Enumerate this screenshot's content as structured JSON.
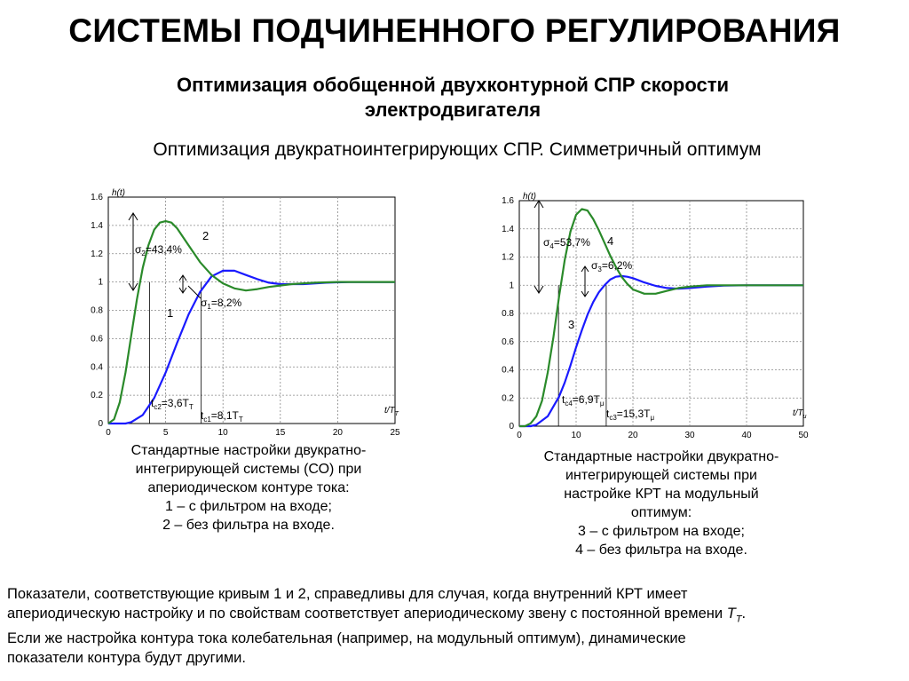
{
  "title": "СИСТЕМЫ ПОДЧИНЕННОГО РЕГУЛИРОВАНИЯ",
  "subtitle_line1": "Оптимизация обобщенной двухконтурной СПР скорости",
  "subtitle_line2": "электродвигателя",
  "subtitle2": "Оптимизация двукратноинтегрирующих СПР. Симметричный оптимум",
  "chart_data": [
    {
      "type": "line",
      "ylabel": "h(t)",
      "xlabel": "t/T",
      "xlabel_sub": "T",
      "xlim": [
        0,
        25
      ],
      "ylim": [
        0,
        1.6
      ],
      "x_ticks": [
        0,
        5,
        10,
        15,
        20,
        25
      ],
      "y_ticks": [
        0,
        0.2,
        0.4,
        0.6,
        0.8,
        1,
        1.2,
        1.4,
        1.6
      ],
      "grid": true,
      "series": [
        {
          "name": "1",
          "color": "#1a1aff",
          "x": [
            0,
            1.5,
            2,
            3,
            4,
            5,
            6,
            7,
            8,
            9,
            10,
            11,
            12,
            13,
            14,
            15,
            17,
            19,
            21,
            25
          ],
          "y": [
            0,
            0,
            0.01,
            0.06,
            0.18,
            0.36,
            0.57,
            0.77,
            0.93,
            1.04,
            1.08,
            1.08,
            1.05,
            1.02,
            0.995,
            0.985,
            0.985,
            0.995,
            1.0,
            1.0
          ]
        },
        {
          "name": "2",
          "color": "#2a8a2a",
          "x": [
            0,
            0.5,
            1,
            1.5,
            2,
            2.5,
            3,
            3.5,
            4,
            4.5,
            5,
            5.5,
            6,
            7,
            8,
            9,
            10,
            11,
            12,
            13,
            14,
            16,
            18,
            20,
            22,
            25
          ],
          "y": [
            0,
            0.03,
            0.15,
            0.36,
            0.62,
            0.88,
            1.1,
            1.26,
            1.37,
            1.42,
            1.43,
            1.42,
            1.38,
            1.26,
            1.14,
            1.05,
            0.99,
            0.955,
            0.94,
            0.95,
            0.965,
            0.985,
            0.995,
            1.0,
            1.0,
            1.0
          ]
        }
      ],
      "annotations": {
        "sigma2_base": "σ",
        "sigma2_sub": "2",
        "sigma2_val": "=43,4%",
        "curve2": "2",
        "sigma1_base": "σ",
        "sigma1_sub": "1",
        "sigma1_val": "=8,2%",
        "curve1": "1",
        "t2_base": "t",
        "t2_sub": "c2",
        "t2_val": "=3,6T",
        "t2_unit": "T",
        "t1_base": "t",
        "t1_sub": "c1",
        "t1_val": "=8,1T",
        "t1_unit": "T",
        "t2": 3.6,
        "t1": 8.1
      }
    },
    {
      "type": "line",
      "ylabel": "h(t)",
      "xlabel": "t/T",
      "xlabel_sub": "μ",
      "xlim": [
        0,
        50
      ],
      "ylim": [
        0,
        1.6
      ],
      "x_ticks": [
        0,
        10,
        20,
        30,
        40,
        50
      ],
      "y_ticks": [
        0,
        0.2,
        0.4,
        0.6,
        0.8,
        1,
        1.2,
        1.4,
        1.6
      ],
      "grid": true,
      "series": [
        {
          "name": "3",
          "color": "#1a1aff",
          "x": [
            0,
            2,
            3,
            5,
            7,
            8,
            9,
            10,
            11,
            12,
            13,
            14,
            15,
            16,
            17,
            18,
            19,
            20,
            21,
            22,
            24,
            26,
            28,
            30,
            33,
            36,
            40,
            50
          ],
          "y": [
            0,
            0,
            0.01,
            0.07,
            0.21,
            0.31,
            0.43,
            0.56,
            0.68,
            0.79,
            0.88,
            0.95,
            1.0,
            1.04,
            1.06,
            1.065,
            1.06,
            1.05,
            1.035,
            1.02,
            0.995,
            0.98,
            0.975,
            0.98,
            0.99,
            0.997,
            1.0,
            1.0
          ]
        },
        {
          "name": "4",
          "color": "#2a8a2a",
          "x": [
            0,
            1,
            2,
            3,
            4,
            5,
            6,
            7,
            8,
            9,
            10,
            11,
            12,
            13,
            14,
            15,
            16,
            17,
            18,
            19,
            20,
            22,
            24,
            26,
            28,
            30,
            33,
            36,
            40,
            50
          ],
          "y": [
            0,
            0,
            0.02,
            0.07,
            0.18,
            0.38,
            0.63,
            0.92,
            1.18,
            1.38,
            1.5,
            1.54,
            1.53,
            1.47,
            1.39,
            1.3,
            1.21,
            1.13,
            1.06,
            1.01,
            0.97,
            0.94,
            0.94,
            0.96,
            0.98,
            0.99,
            1.0,
            1.0,
            1.0,
            1.0
          ]
        }
      ],
      "annotations": {
        "sigma4_base": "σ",
        "sigma4_sub": "4",
        "sigma4_val": "=53,7%",
        "curve4": "4",
        "sigma3_base": "σ",
        "sigma3_sub": "3",
        "sigma3_val": "=6,2%",
        "curve3": "3",
        "t4_base": "t",
        "t4_sub": "c4",
        "t4_val": "=6,9T",
        "t4_unit": "μ",
        "t3_base": "t",
        "t3_sub": "c3",
        "t3_val": "=15,3T",
        "t3_unit": "μ",
        "t4": 6.9,
        "t3": 15.3
      }
    }
  ],
  "caption_left": [
    "Стандартные настройки двукратно-",
    "интегрирующей системы (СО) при",
    "апериодическом контуре тока:",
    "1 – с фильтром на входе;",
    "2 – без фильтра на входе."
  ],
  "caption_right": [
    "Стандартные настройки двукратно-",
    "интегрирующей системы при",
    "настройке КРТ на модульный",
    "оптимум:",
    "3 – с фильтром на входе;",
    "4 – без фильтра на входе."
  ],
  "note_line1": "Показатели, соответствующие кривым 1 и 2, справедливы для случая, когда внутренний КРТ имеет",
  "note_line2_text": "апериодическую настройку и по свойствам соответствует апериодическому звену с постоянной времени",
  "note_line2_var": "T",
  "note_line2_sub": "T",
  "note_line2_end": ".",
  "note_line3": "Если же настройка контура тока колебательная (например, на модульный оптимум), динамические",
  "note_line4": "показатели контура будут другими."
}
